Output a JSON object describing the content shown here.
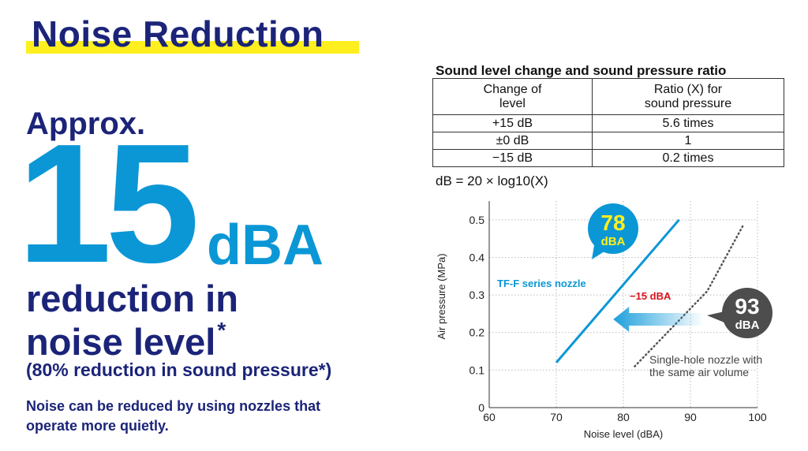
{
  "headline": {
    "title": "Noise Reduction",
    "approx": "Approx.",
    "big_number": "15",
    "unit": "dBA",
    "reduction_line1": "reduction in",
    "reduction_line2": "noise level",
    "asterisk": "*",
    "pressure_note": "(80% reduction in sound pressure*)",
    "description": "Noise can be reduced by using nozzles that operate more quietly."
  },
  "table": {
    "title": "Sound level change and sound pressure ratio",
    "headers": [
      "Change of level",
      "Ratio (X) for sound pressure"
    ],
    "rows": [
      [
        "+15 dB",
        "5.6 times"
      ],
      [
        "±0 dB",
        "1"
      ],
      [
        "−15 dB",
        "0.2 times"
      ]
    ],
    "formula": "dB = 20 × log10(X)"
  },
  "chart_data": {
    "type": "line",
    "xlabel": "Noise level (dBA)",
    "ylabel": "Air pressure (MPa)",
    "xlim": [
      60,
      100
    ],
    "ylim": [
      0,
      0.55
    ],
    "x_ticks": [
      "60",
      "70",
      "80",
      "90",
      "100"
    ],
    "y_ticks": [
      "0",
      "0.1",
      "0.2",
      "0.3",
      "0.4",
      "0.5"
    ],
    "grid": true,
    "series": [
      {
        "name": "TF-F series nozzle",
        "color": "#0b97d6",
        "style": "solid",
        "points": [
          [
            70,
            0.12
          ],
          [
            88.3,
            0.5
          ]
        ]
      },
      {
        "name": "Single-hole nozzle with the same air volume",
        "name_lines": [
          "Single-hole nozzle with",
          "the same air volume"
        ],
        "color": "#555555",
        "style": "dotted",
        "points": [
          [
            81.7,
            0.11
          ],
          [
            92.5,
            0.31
          ],
          [
            98,
            0.49
          ]
        ]
      }
    ],
    "annotations": {
      "callout_tf": {
        "value": "78",
        "unit": "dBA",
        "color": "#0b97d6",
        "value_color": "#ffef1e"
      },
      "callout_single": {
        "value": "93",
        "unit": "dBA",
        "color": "#4d4d4d"
      },
      "reduction_label": "−15 dBA",
      "reduction_color": "#d7141e",
      "arrow_from": [
        92,
        0.235
      ],
      "arrow_to": [
        78.5,
        0.235
      ]
    }
  }
}
